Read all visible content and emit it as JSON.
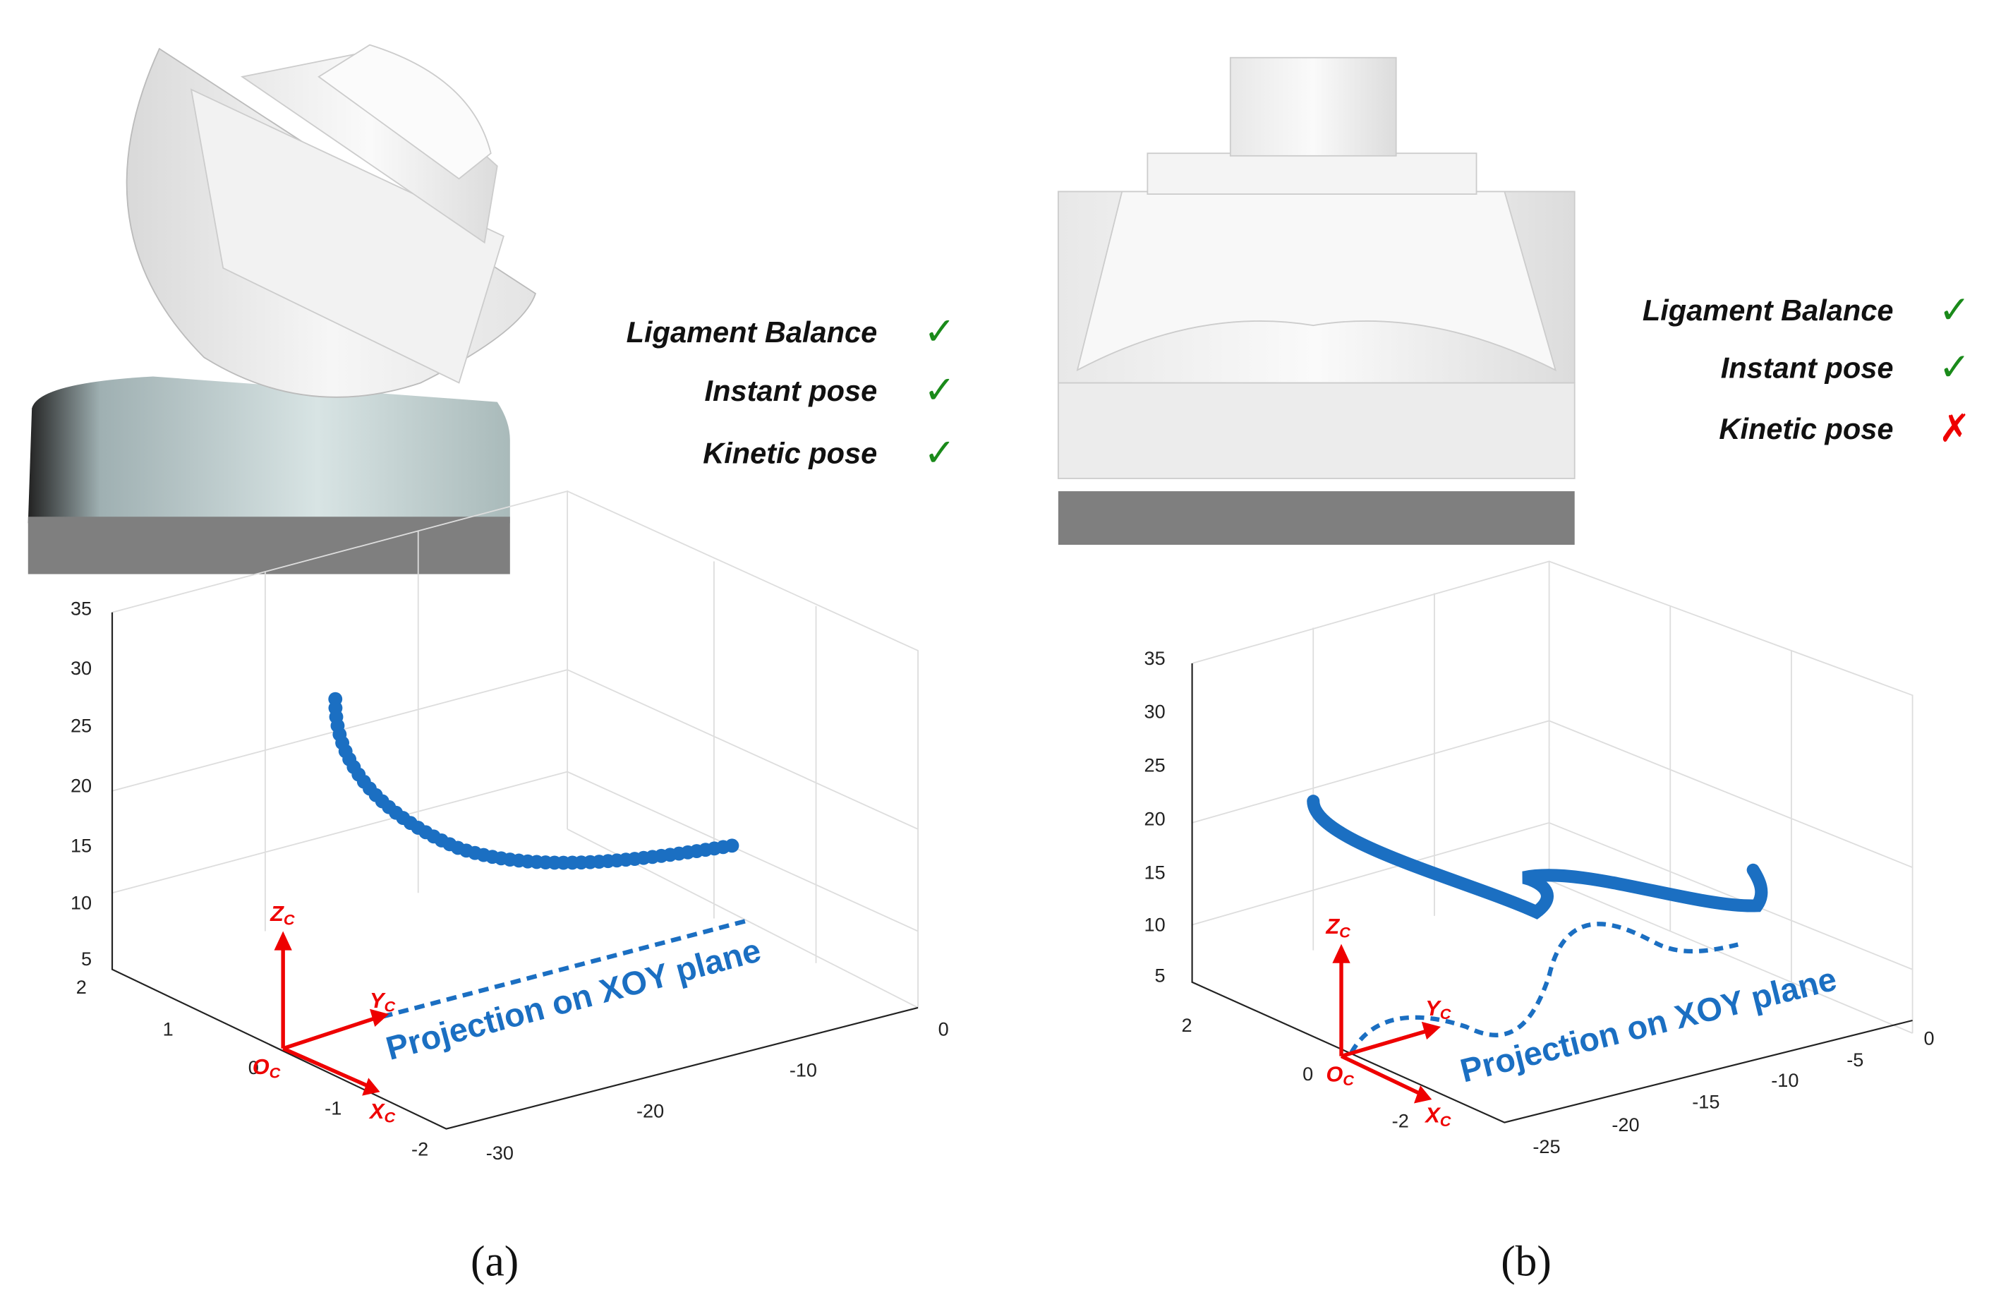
{
  "panels": [
    {
      "label": "(a)",
      "checklist": [
        {
          "text": "Ligament Balance",
          "status": "✓"
        },
        {
          "text": "Instant pose",
          "status": "✓"
        },
        {
          "text": "Kinetic pose",
          "status": "✓"
        }
      ],
      "z_ticks": [
        35,
        30,
        25,
        20,
        15,
        10,
        5
      ],
      "y_ticks": [
        2,
        1,
        0,
        -1,
        -2
      ],
      "x_ticks": [
        -30,
        -20,
        -10,
        0
      ],
      "frame": {
        "z": "Z",
        "y": "Y",
        "x": "X",
        "o": "O",
        "sub": "C"
      },
      "projection_label": "Projection on XOY plane"
    },
    {
      "label": "(b)",
      "checklist": [
        {
          "text": "Ligament Balance",
          "status": "✓"
        },
        {
          "text": "Instant pose",
          "status": "✓"
        },
        {
          "text": "Kinetic pose",
          "status": "✗"
        }
      ],
      "z_ticks": [
        35,
        30,
        25,
        20,
        15,
        10,
        5
      ],
      "y_ticks": [
        2,
        0,
        -2
      ],
      "x_ticks": [
        -25,
        -20,
        -15,
        -10,
        -5,
        0
      ],
      "frame": {
        "z": "Z",
        "y": "Y",
        "x": "X",
        "o": "O",
        "sub": "C"
      },
      "projection_label": "Projection on XOY plane"
    }
  ]
}
